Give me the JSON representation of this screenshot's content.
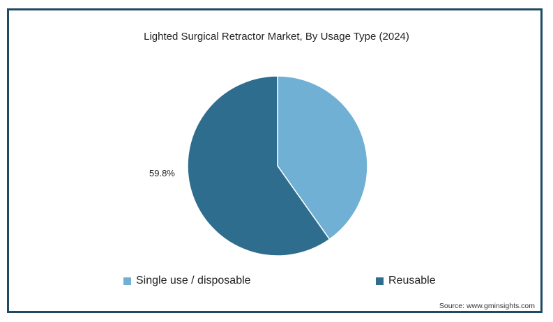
{
  "chart_data": {
    "type": "pie",
    "title": "Lighted Surgical Retractor Market, By Usage Type (2024)",
    "slices": [
      {
        "name": "Single use / disposable",
        "value": 40.2,
        "color": "#6fb0d4",
        "label": ""
      },
      {
        "name": "Reusable",
        "value": 59.8,
        "color": "#2f6d8e",
        "label": "59.8%"
      }
    ],
    "legend_position": "bottom"
  },
  "source": "Source: www.gminsights.com"
}
